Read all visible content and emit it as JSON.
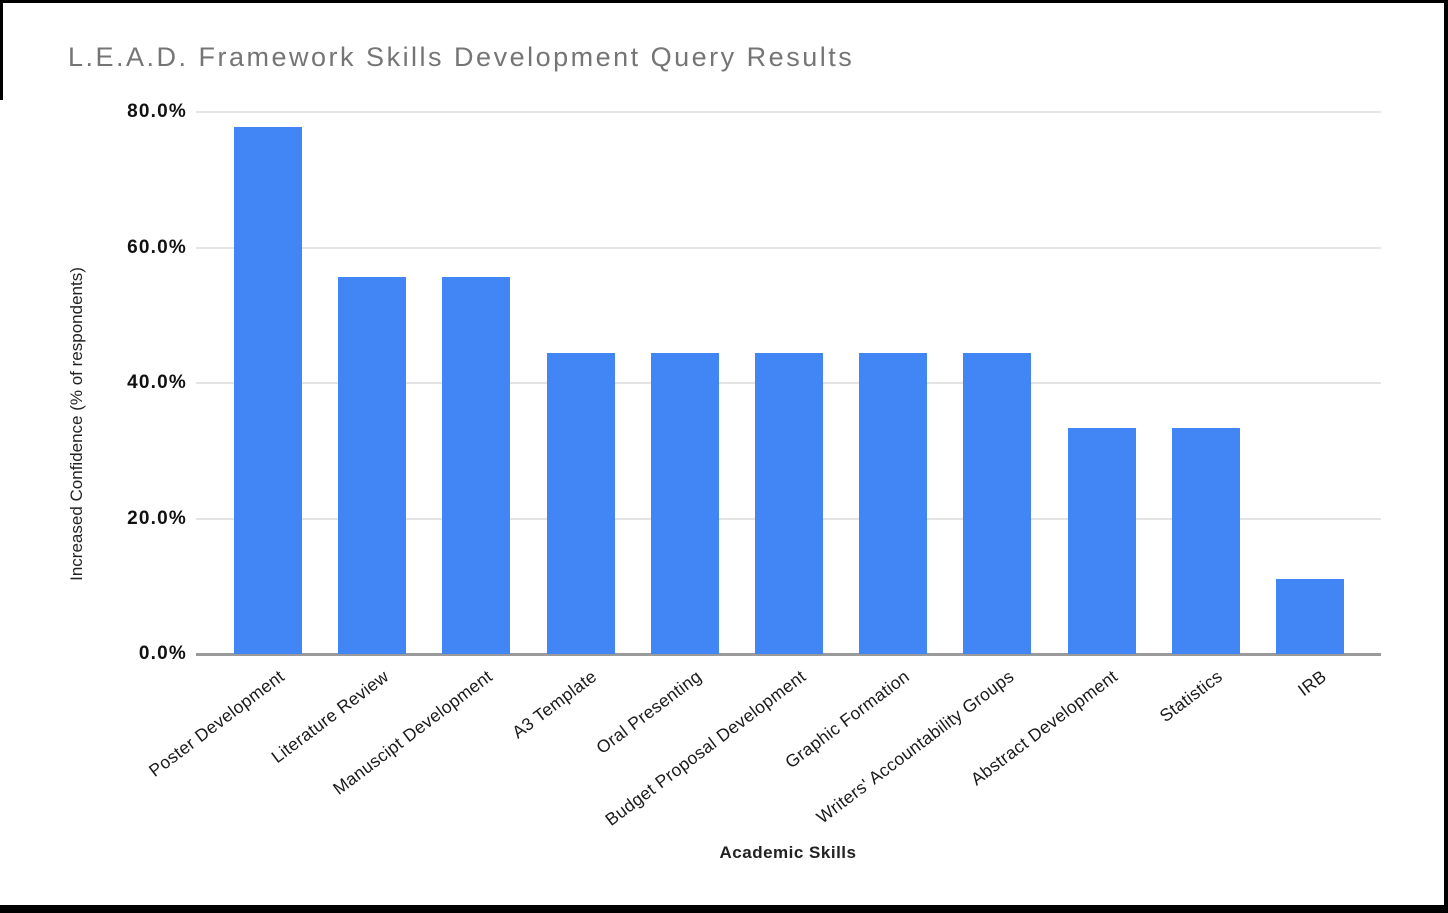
{
  "chart_data": {
    "type": "bar",
    "title": "L.E.A.D. Framework Skills Development Query Results",
    "xlabel": "Academic Skills",
    "ylabel": "Increased Confidence (% of respondents)",
    "categories": [
      "Poster Development",
      "Literature Review",
      "Manuscipt Development",
      "A3 Template",
      "Oral Presenting",
      "Budget Proposal Development",
      "Graphic Formation",
      "Writers' Accountability Groups",
      "Abstract Development",
      "Statistics",
      "IRB"
    ],
    "values": [
      77.8,
      55.6,
      55.6,
      44.4,
      44.4,
      44.4,
      44.4,
      44.4,
      33.3,
      33.3,
      11.1
    ],
    "ylim": [
      0,
      80
    ],
    "yticks": [
      {
        "label": "80.0%",
        "value": 80
      },
      {
        "label": "60.0%",
        "value": 60
      },
      {
        "label": "40.0%",
        "value": 40
      },
      {
        "label": "20.0%",
        "value": 20
      },
      {
        "label": "0.0%",
        "value": 0
      }
    ],
    "bar_color": "#4285f4",
    "grid": true,
    "legend": "none"
  }
}
